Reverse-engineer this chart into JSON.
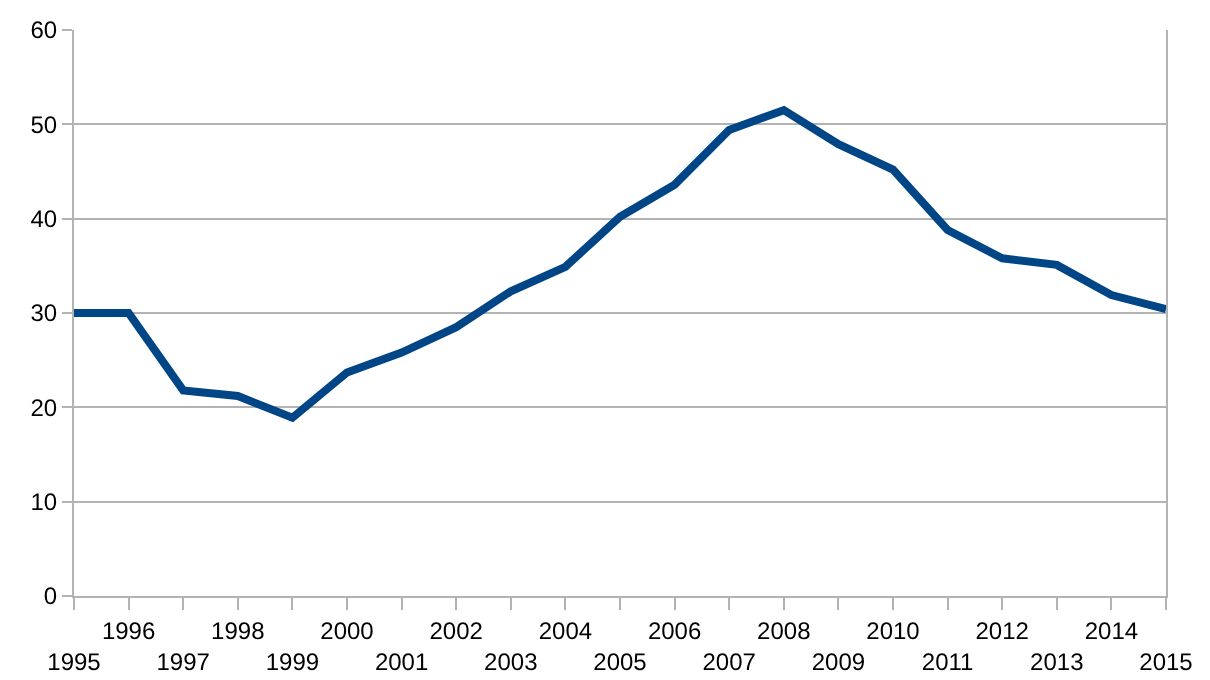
{
  "chart_data": {
    "type": "line",
    "categories": [
      "1995",
      "1996",
      "1997",
      "1998",
      "1999",
      "2000",
      "2001",
      "2002",
      "2003",
      "2004",
      "2005",
      "2006",
      "2007",
      "2008",
      "2009",
      "2010",
      "2011",
      "2012",
      "2013",
      "2014",
      "2015"
    ],
    "series": [
      {
        "color": "#004586",
        "values": [
          30,
          30,
          21.8,
          21.2,
          18.9,
          23.7,
          25.8,
          28.5,
          32.3,
          34.9,
          40.2,
          43.6,
          49.4,
          51.5,
          47.9,
          45.2,
          38.8,
          35.8,
          35.1,
          31.9,
          30.4
        ]
      }
    ],
    "ylim": [
      0,
      60
    ],
    "yticks": [
      0,
      10,
      20,
      30,
      40,
      50,
      60
    ],
    "grid": "y",
    "legend": false,
    "marker": "none",
    "line_style": "solid"
  }
}
